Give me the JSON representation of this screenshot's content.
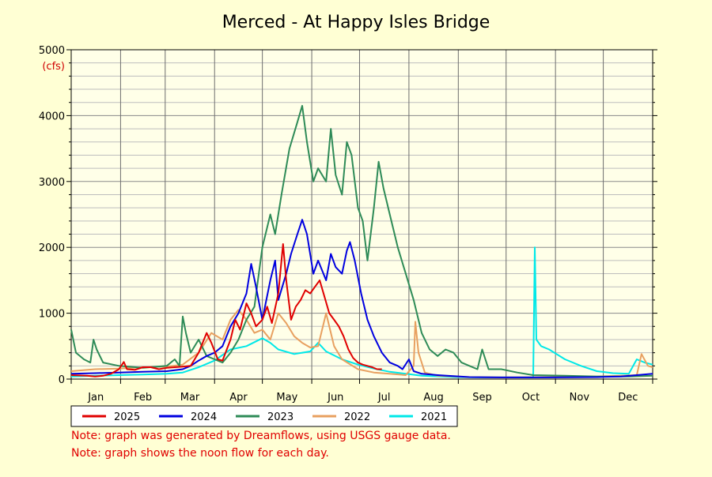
{
  "chart_data": {
    "type": "line",
    "title": "Merced - At Happy Isles Bridge",
    "unit_label": "(cfs)",
    "ylim": [
      0,
      5000
    ],
    "y_ticks": [
      0,
      1000,
      2000,
      3000,
      4000,
      5000
    ],
    "x_labels": [
      "Jan",
      "Feb",
      "Mar",
      "Apr",
      "May",
      "Jun",
      "Jul",
      "Aug",
      "Sep",
      "Oct",
      "Nov",
      "Dec"
    ],
    "grid": true,
    "legend_position": "bottom-left",
    "series": [
      {
        "name": "2021",
        "color": "#00e8e8",
        "points": [
          [
            0,
            40
          ],
          [
            15,
            50
          ],
          [
            30,
            60
          ],
          [
            45,
            70
          ],
          [
            60,
            80
          ],
          [
            70,
            100
          ],
          [
            80,
            180
          ],
          [
            90,
            280
          ],
          [
            100,
            450
          ],
          [
            110,
            500
          ],
          [
            120,
            620
          ],
          [
            125,
            550
          ],
          [
            130,
            450
          ],
          [
            140,
            380
          ],
          [
            150,
            420
          ],
          [
            155,
            550
          ],
          [
            160,
            420
          ],
          [
            170,
            300
          ],
          [
            180,
            220
          ],
          [
            190,
            160
          ],
          [
            200,
            110
          ],
          [
            210,
            80
          ],
          [
            220,
            50
          ],
          [
            240,
            30
          ],
          [
            260,
            25
          ],
          [
            280,
            25
          ],
          [
            290,
            25
          ],
          [
            291,
            2000
          ],
          [
            292,
            600
          ],
          [
            295,
            500
          ],
          [
            300,
            450
          ],
          [
            310,
            300
          ],
          [
            320,
            200
          ],
          [
            330,
            120
          ],
          [
            340,
            90
          ],
          [
            350,
            80
          ],
          [
            355,
            300
          ],
          [
            360,
            250
          ],
          [
            365,
            220
          ]
        ]
      },
      {
        "name": "2022",
        "color": "#e8a060",
        "points": [
          [
            0,
            120
          ],
          [
            15,
            150
          ],
          [
            30,
            160
          ],
          [
            45,
            180
          ],
          [
            60,
            190
          ],
          [
            70,
            220
          ],
          [
            80,
            400
          ],
          [
            88,
            700
          ],
          [
            95,
            600
          ],
          [
            100,
            900
          ],
          [
            105,
            1050
          ],
          [
            110,
            900
          ],
          [
            115,
            700
          ],
          [
            120,
            750
          ],
          [
            125,
            600
          ],
          [
            130,
            1000
          ],
          [
            135,
            850
          ],
          [
            140,
            650
          ],
          [
            145,
            550
          ],
          [
            150,
            480
          ],
          [
            155,
            500
          ],
          [
            160,
            1000
          ],
          [
            165,
            500
          ],
          [
            170,
            300
          ],
          [
            180,
            150
          ],
          [
            190,
            100
          ],
          [
            200,
            80
          ],
          [
            210,
            60
          ],
          [
            215,
            200
          ],
          [
            216,
            870
          ],
          [
            218,
            400
          ],
          [
            222,
            100
          ],
          [
            230,
            50
          ],
          [
            250,
            30
          ],
          [
            270,
            25
          ],
          [
            300,
            30
          ],
          [
            330,
            40
          ],
          [
            345,
            50
          ],
          [
            355,
            60
          ],
          [
            358,
            380
          ],
          [
            362,
            200
          ],
          [
            365,
            180
          ]
        ]
      },
      {
        "name": "2023",
        "color": "#2e8b57",
        "points": [
          [
            0,
            750
          ],
          [
            3,
            400
          ],
          [
            8,
            300
          ],
          [
            12,
            250
          ],
          [
            14,
            600
          ],
          [
            16,
            450
          ],
          [
            20,
            250
          ],
          [
            30,
            200
          ],
          [
            45,
            170
          ],
          [
            60,
            200
          ],
          [
            65,
            300
          ],
          [
            68,
            200
          ],
          [
            70,
            950
          ],
          [
            72,
            700
          ],
          [
            75,
            400
          ],
          [
            80,
            600
          ],
          [
            85,
            350
          ],
          [
            90,
            300
          ],
          [
            95,
            250
          ],
          [
            100,
            400
          ],
          [
            105,
            600
          ],
          [
            110,
            900
          ],
          [
            115,
            1100
          ],
          [
            120,
            2000
          ],
          [
            125,
            2500
          ],
          [
            128,
            2200
          ],
          [
            132,
            2800
          ],
          [
            137,
            3500
          ],
          [
            142,
            3900
          ],
          [
            145,
            4150
          ],
          [
            148,
            3600
          ],
          [
            152,
            3000
          ],
          [
            155,
            3200
          ],
          [
            160,
            3000
          ],
          [
            163,
            3800
          ],
          [
            166,
            3100
          ],
          [
            170,
            2800
          ],
          [
            173,
            3600
          ],
          [
            176,
            3400
          ],
          [
            180,
            2600
          ],
          [
            183,
            2400
          ],
          [
            186,
            1800
          ],
          [
            190,
            2600
          ],
          [
            193,
            3300
          ],
          [
            196,
            2900
          ],
          [
            200,
            2500
          ],
          [
            205,
            2000
          ],
          [
            210,
            1600
          ],
          [
            215,
            1200
          ],
          [
            220,
            700
          ],
          [
            225,
            450
          ],
          [
            230,
            350
          ],
          [
            235,
            450
          ],
          [
            240,
            400
          ],
          [
            245,
            250
          ],
          [
            250,
            200
          ],
          [
            255,
            150
          ],
          [
            258,
            450
          ],
          [
            262,
            150
          ],
          [
            270,
            150
          ],
          [
            280,
            100
          ],
          [
            290,
            60
          ],
          [
            310,
            50
          ],
          [
            330,
            40
          ],
          [
            350,
            40
          ],
          [
            365,
            50
          ]
        ]
      },
      {
        "name": "2024",
        "color": "#0000e0",
        "points": [
          [
            0,
            80
          ],
          [
            15,
            90
          ],
          [
            30,
            100
          ],
          [
            45,
            110
          ],
          [
            60,
            120
          ],
          [
            70,
            150
          ],
          [
            75,
            200
          ],
          [
            80,
            280
          ],
          [
            85,
            350
          ],
          [
            90,
            400
          ],
          [
            95,
            500
          ],
          [
            100,
            800
          ],
          [
            105,
            1000
          ],
          [
            110,
            1300
          ],
          [
            113,
            1750
          ],
          [
            116,
            1400
          ],
          [
            120,
            900
          ],
          [
            125,
            1500
          ],
          [
            128,
            1800
          ],
          [
            130,
            1200
          ],
          [
            135,
            1600
          ],
          [
            138,
            1900
          ],
          [
            142,
            2200
          ],
          [
            145,
            2420
          ],
          [
            148,
            2200
          ],
          [
            152,
            1600
          ],
          [
            155,
            1800
          ],
          [
            160,
            1500
          ],
          [
            163,
            1900
          ],
          [
            166,
            1700
          ],
          [
            170,
            1600
          ],
          [
            173,
            1950
          ],
          [
            175,
            2080
          ],
          [
            178,
            1800
          ],
          [
            182,
            1300
          ],
          [
            186,
            900
          ],
          [
            190,
            650
          ],
          [
            195,
            400
          ],
          [
            200,
            250
          ],
          [
            205,
            200
          ],
          [
            208,
            150
          ],
          [
            212,
            300
          ],
          [
            215,
            120
          ],
          [
            220,
            80
          ],
          [
            230,
            60
          ],
          [
            250,
            30
          ],
          [
            270,
            25
          ],
          [
            300,
            25
          ],
          [
            330,
            30
          ],
          [
            345,
            40
          ],
          [
            355,
            60
          ],
          [
            365,
            80
          ]
        ]
      },
      {
        "name": "2025",
        "color": "#e00000",
        "points": [
          [
            0,
            60
          ],
          [
            10,
            50
          ],
          [
            15,
            40
          ],
          [
            20,
            50
          ],
          [
            25,
            80
          ],
          [
            30,
            150
          ],
          [
            33,
            260
          ],
          [
            35,
            150
          ],
          [
            40,
            140
          ],
          [
            45,
            180
          ],
          [
            50,
            180
          ],
          [
            55,
            150
          ],
          [
            60,
            170
          ],
          [
            65,
            180
          ],
          [
            70,
            190
          ],
          [
            75,
            200
          ],
          [
            80,
            400
          ],
          [
            85,
            700
          ],
          [
            88,
            550
          ],
          [
            92,
            300
          ],
          [
            95,
            280
          ],
          [
            100,
            600
          ],
          [
            103,
            900
          ],
          [
            106,
            750
          ],
          [
            110,
            1150
          ],
          [
            113,
            1000
          ],
          [
            116,
            800
          ],
          [
            120,
            900
          ],
          [
            123,
            1100
          ],
          [
            126,
            850
          ],
          [
            130,
            1300
          ],
          [
            133,
            2050
          ],
          [
            135,
            1500
          ],
          [
            138,
            900
          ],
          [
            141,
            1100
          ],
          [
            144,
            1200
          ],
          [
            147,
            1350
          ],
          [
            150,
            1300
          ],
          [
            153,
            1400
          ],
          [
            156,
            1500
          ],
          [
            159,
            1250
          ],
          [
            162,
            1000
          ],
          [
            165,
            900
          ],
          [
            168,
            800
          ],
          [
            171,
            650
          ],
          [
            174,
            450
          ],
          [
            177,
            320
          ],
          [
            180,
            250
          ],
          [
            183,
            220
          ],
          [
            186,
            200
          ],
          [
            189,
            180
          ],
          [
            192,
            150
          ],
          [
            195,
            150
          ]
        ]
      }
    ],
    "notes": [
      "Note: graph was generated by Dreamflows, using USGS gauge data.",
      "Note: graph shows the noon flow for each day."
    ]
  }
}
